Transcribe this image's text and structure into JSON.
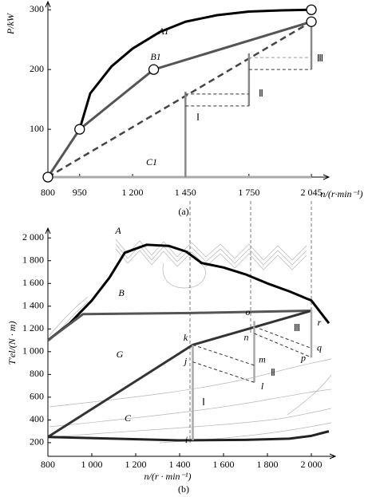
{
  "chart_data": [
    {
      "type": "line",
      "caption": "(a)",
      "y_label": "P/kW",
      "x_label": "n/(r·min⁻¹)",
      "xlim": [
        800,
        2100
      ],
      "ylim": [
        20,
        315
      ],
      "xticks": [
        800,
        950,
        {
          "value": 1200,
          "label": "1 200"
        },
        {
          "value": 1450,
          "label": "1 450"
        },
        {
          "value": 1750,
          "label": "1 750"
        },
        {
          "value": 2045,
          "label": "2 045"
        }
      ],
      "yticks": [
        100,
        200,
        300
      ],
      "series": [
        {
          "name": "A1",
          "color": "#000000",
          "width": 3,
          "x": [
            950,
            1000,
            1100,
            1200,
            1330,
            1450,
            1600,
            1750,
            1900,
            2045
          ],
          "values": [
            100,
            160,
            205,
            235,
            263,
            280,
            291,
            297,
            299,
            300
          ]
        },
        {
          "name": "B1",
          "color": "#555555",
          "width": 3,
          "x": [
            800,
            950,
            1300,
            2045
          ],
          "values": [
            20,
            100,
            200,
            280
          ]
        },
        {
          "color": "#444444",
          "width": 2.5,
          "dash": true,
          "x": [
            800,
            2045
          ],
          "values": [
            20,
            280
          ]
        },
        {
          "name": "C1",
          "color": "#aaaaaa",
          "width": 3,
          "x": [
            800,
            2045
          ],
          "values": [
            20,
            20
          ]
        },
        {
          "name": "Ⅰ",
          "color": "#888888",
          "width": 2.5,
          "x": [
            1450,
            1450
          ],
          "values": [
            20,
            163
          ]
        },
        {
          "name": "Ⅱ",
          "color": "#888888",
          "width": 2.5,
          "x": [
            1750,
            1750
          ],
          "values": [
            139,
            227
          ]
        },
        {
          "name": "Ⅲ",
          "color": "#888888",
          "width": 2.5,
          "x": [
            2045,
            2045
          ],
          "values": [
            200,
            276
          ]
        },
        {
          "color": "#333333",
          "width": 1,
          "dash": true,
          "x": [
            1450,
            1750
          ],
          "values": [
            159,
            159
          ]
        },
        {
          "color": "#333333",
          "width": 1,
          "dash": true,
          "x": [
            1450,
            1750
          ],
          "values": [
            139,
            139
          ]
        },
        {
          "color": "#999999",
          "width": 1,
          "dash": true,
          "x": [
            1750,
            2045
          ],
          "values": [
            220,
            220
          ]
        },
        {
          "color": "#333333",
          "width": 1,
          "dash": true,
          "x": [
            1750,
            2045
          ],
          "values": [
            200,
            200
          ]
        },
        {
          "style": "marker",
          "color": "#000000",
          "x": [
            800,
            950,
            1300,
            2045,
            2045
          ],
          "values": [
            20,
            100,
            200,
            300,
            280
          ]
        }
      ]
    },
    {
      "type": "line",
      "caption": "(b)",
      "y_label": "T′el/(N · m)",
      "x_label": "n/(r · min⁻¹)",
      "xlim": [
        800,
        2100
      ],
      "ylim": [
        80,
        2100
      ],
      "xticks": [
        800,
        {
          "value": 1000,
          "label": "1 000"
        },
        {
          "value": 1200,
          "label": "1 200"
        },
        {
          "value": 1400,
          "label": "1 400"
        },
        {
          "value": 1600,
          "label": "1 600"
        },
        {
          "value": 1800,
          "label": "1 800"
        },
        {
          "value": 2000,
          "label": "2 000"
        }
      ],
      "yticks": [
        200,
        400,
        600,
        800,
        {
          "value": 1000,
          "label": "1 000"
        },
        {
          "value": 1200,
          "label": "1 200"
        },
        {
          "value": 1400,
          "label": "1 400"
        },
        {
          "value": 1600,
          "label": "1 600"
        },
        {
          "value": 1800,
          "label": "1 800"
        },
        {
          "value": 2000,
          "label": "2 000"
        }
      ],
      "series": [
        {
          "name": "A",
          "color": "#000000",
          "width": 3,
          "x": [
            800,
            900,
            1000,
            1080,
            1150,
            1250,
            1350,
            1430,
            1500,
            1600,
            1700,
            1800,
            1900,
            2000,
            2080
          ],
          "values": [
            1100,
            1250,
            1450,
            1650,
            1870,
            1940,
            1930,
            1880,
            1780,
            1740,
            1680,
            1600,
            1530,
            1450,
            1250
          ]
        },
        {
          "name": "B",
          "color": "#555555",
          "width": 3,
          "x": [
            800,
            960,
            1450,
            2000
          ],
          "values": [
            1100,
            1330,
            1340,
            1360
          ]
        },
        {
          "name": "G",
          "color": "#333333",
          "width": 3,
          "x": [
            800,
            1460,
            2000
          ],
          "values": [
            250,
            1060,
            1360
          ]
        },
        {
          "name": "C",
          "color": "#222222",
          "width": 3,
          "x": [
            800,
            1100,
            1400,
            1700,
            1900,
            2000,
            2080
          ],
          "values": [
            250,
            235,
            220,
            225,
            235,
            260,
            300
          ]
        },
        {
          "name": "Ⅰ",
          "color": "#aaaaaa",
          "width": 2.5,
          "x": [
            1460,
            1460,
            1460
          ],
          "values": [
            220,
            910,
            1060
          ],
          "point_labels": [
            "i",
            "j",
            "k"
          ]
        },
        {
          "name": "Ⅱ",
          "color": "#aaaaaa",
          "width": 2.5,
          "x": [
            1740,
            1740,
            1740,
            1740
          ],
          "values": [
            730,
            880,
            1120,
            1270
          ],
          "point_labels": [
            "l",
            "m",
            "n",
            "o"
          ]
        },
        {
          "name": "Ⅲ",
          "color": "#aaaaaa",
          "width": 2.5,
          "x": [
            2000,
            2000,
            2000,
            2000
          ],
          "values": [
            950,
            1030,
            1250,
            1370
          ],
          "point_labels": [
            "p",
            "q",
            "r",
            null
          ]
        },
        {
          "color": "#333333",
          "width": 1,
          "dash": true,
          "x": [
            1460,
            1740
          ],
          "values": [
            910,
            730
          ]
        },
        {
          "color": "#333333",
          "width": 1,
          "dash": true,
          "x": [
            1460,
            1740
          ],
          "values": [
            1060,
            880
          ]
        },
        {
          "color": "#333333",
          "width": 1,
          "dash": true,
          "x": [
            1740,
            2000
          ],
          "values": [
            1220,
            1030
          ]
        },
        {
          "color": "#333333",
          "width": 1,
          "dash": true,
          "x": [
            1740,
            2000
          ],
          "values": [
            1160,
            950
          ]
        }
      ]
    }
  ]
}
